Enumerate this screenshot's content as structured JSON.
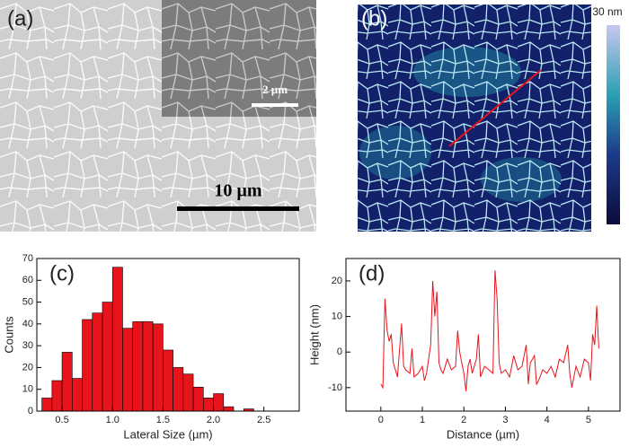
{
  "images": {
    "a": {
      "label": "(a)",
      "inset_scale": "2 µm",
      "scale": "10 µm"
    },
    "b": {
      "label": "(b)",
      "colorbar_label": "30 nm"
    }
  },
  "chart_data": [
    {
      "type": "histogram",
      "label": "(c)",
      "x_label": "Lateral Size (µm)",
      "y_label": "Counts",
      "color": "#e8141b",
      "bins": [
        0.3,
        0.4,
        0.5,
        0.6,
        0.7,
        0.8,
        0.9,
        1.0,
        1.1,
        1.2,
        1.3,
        1.4,
        1.5,
        1.6,
        1.7,
        1.8,
        1.9,
        2.0,
        2.1,
        2.2,
        2.3,
        2.4
      ],
      "values": [
        6,
        14,
        27,
        15,
        42,
        45,
        50,
        66,
        38,
        41,
        41,
        40,
        28,
        20,
        17,
        11,
        6,
        8,
        2,
        0,
        1
      ],
      "xlim": [
        0.25,
        2.85
      ],
      "ylim": [
        0,
        70
      ],
      "xticks": [
        0.5,
        {
          "value": 1,
          "label": "1.0"
        },
        1.5,
        {
          "value": 2,
          "label": "2.0"
        },
        2.5
      ],
      "yticks": [
        0,
        10,
        20,
        30,
        40,
        50,
        60,
        70
      ]
    },
    {
      "type": "line",
      "label": "(d)",
      "x_label": "Distance (µm)",
      "y_label": "Height (nm)",
      "color": "#e8141b",
      "x": [
        0,
        0.05,
        0.1,
        0.15,
        0.2,
        0.25,
        0.3,
        0.35,
        0.4,
        0.5,
        0.55,
        0.6,
        0.7,
        0.75,
        0.8,
        0.9,
        1.0,
        1.05,
        1.1,
        1.2,
        1.25,
        1.3,
        1.35,
        1.4,
        1.45,
        1.5,
        1.6,
        1.7,
        1.8,
        1.85,
        1.9,
        2.0,
        2.05,
        2.1,
        2.15,
        2.2,
        2.3,
        2.35,
        2.4,
        2.5,
        2.6,
        2.7,
        2.75,
        2.8,
        2.85,
        2.9,
        3.0,
        3.1,
        3.2,
        3.3,
        3.4,
        3.5,
        3.55,
        3.6,
        3.7,
        3.75,
        3.8,
        3.9,
        4.0,
        4.1,
        4.2,
        4.3,
        4.4,
        4.5,
        4.55,
        4.6,
        4.7,
        4.8,
        4.9,
        5.0,
        5.05,
        5.1,
        5.15,
        5.2,
        5.25
      ],
      "values": [
        -9,
        -10,
        15,
        6,
        3,
        5,
        -3,
        -5,
        -7,
        8,
        -4,
        -5,
        -6,
        1,
        -7,
        -6,
        -4,
        -8,
        -6,
        2,
        20,
        10,
        17,
        -3,
        -5,
        -6,
        -2,
        -5,
        -4,
        6,
        0,
        -6,
        -11,
        -4,
        -2,
        -6,
        -2,
        5,
        -7,
        -4,
        -5,
        -6,
        23,
        15,
        -3,
        -6,
        -5,
        -7,
        -1,
        -5,
        -4,
        2,
        -9,
        -3,
        -1,
        -9,
        -8,
        -5,
        -6,
        -4,
        -7,
        -2,
        -3,
        2,
        -6,
        -10,
        -4,
        -7,
        -2,
        -3,
        -8,
        5,
        2,
        13,
        1
      ],
      "xlim": [
        -0.84,
        5.76
      ],
      "ylim": [
        -16.6,
        26.3
      ],
      "xticks": [
        0,
        1,
        2,
        3,
        4,
        5
      ],
      "yticks": [
        -10,
        0,
        10,
        20
      ]
    }
  ]
}
